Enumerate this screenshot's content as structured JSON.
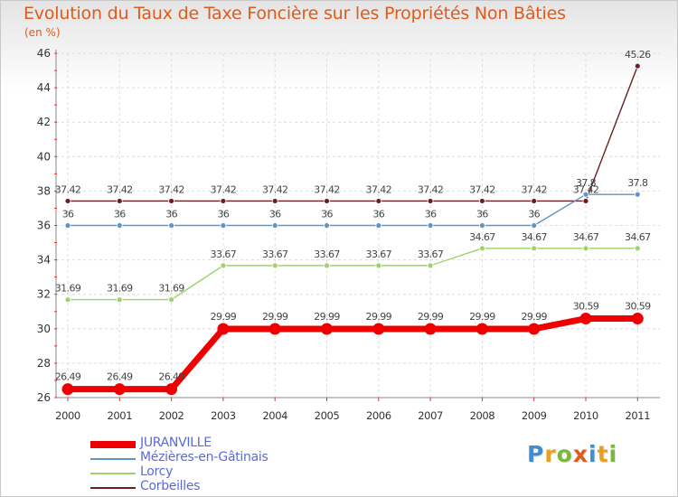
{
  "title": "Evolution du Taux de Taxe Foncière sur les Propriétés Non Bâties",
  "unit": "(en %)",
  "logo": {
    "text": "Proxiti",
    "colors": [
      "#3a8fd6",
      "#e8a020",
      "#7ab83a",
      "#e05a1a",
      "#3a8fd6",
      "#e8a020",
      "#7ab83a"
    ]
  },
  "chart_data": {
    "type": "line",
    "title": "Evolution du Taux de Taxe Foncière sur les Propriétés Non Bâties",
    "ylabel": "(en %)",
    "xlabel": "",
    "ylim": [
      26,
      46
    ],
    "yticks": [
      26,
      28,
      30,
      32,
      34,
      36,
      38,
      40,
      42,
      44,
      46
    ],
    "categories": [
      "2000",
      "2001",
      "2002",
      "2003",
      "2004",
      "2005",
      "2006",
      "2007",
      "2008",
      "2009",
      "2010",
      "2011"
    ],
    "grid": true,
    "legend_position": "bottom-left",
    "series": [
      {
        "name": "Corbeilles",
        "color": "#6b1f24",
        "values": [
          37.42,
          37.42,
          37.42,
          37.42,
          37.42,
          37.42,
          37.42,
          37.42,
          37.42,
          37.42,
          37.42,
          45.26
        ],
        "labels": [
          "37.42",
          "37.42",
          "37.42",
          "37.42",
          "37.42",
          "37.42",
          "37.42",
          "37.42",
          "37.42",
          "37.42",
          "37.42",
          "45.26"
        ]
      },
      {
        "name": "Mézières-en-Gâtinais",
        "color": "#5b97c8",
        "values": [
          36,
          36,
          36,
          36,
          36,
          36,
          36,
          36,
          36,
          36,
          37.8,
          37.8
        ],
        "labels": [
          "36",
          "36",
          "36",
          "36",
          "36",
          "36",
          "36",
          "36",
          "36",
          "36",
          "37.8",
          "37.8"
        ]
      },
      {
        "name": "Lorcy",
        "color": "#9dd36a",
        "values": [
          31.69,
          31.69,
          31.69,
          33.67,
          33.67,
          33.67,
          33.67,
          33.67,
          34.67,
          34.67,
          34.67,
          34.67
        ],
        "labels": [
          "31.69",
          "31.69",
          "31.69",
          "33.67",
          "33.67",
          "33.67",
          "33.67",
          "33.67",
          "34.67",
          "34.67",
          "34.67",
          "34.67"
        ]
      },
      {
        "name": "JURANVILLE",
        "color": "#ee0000",
        "values": [
          26.49,
          26.49,
          26.49,
          29.99,
          29.99,
          29.99,
          29.99,
          29.99,
          29.99,
          29.99,
          30.59,
          30.59
        ],
        "labels": [
          "26.49",
          "26.49",
          "26.49",
          "29.99",
          "29.99",
          "29.99",
          "29.99",
          "29.99",
          "29.99",
          "29.99",
          "30.59",
          "30.59"
        ]
      }
    ],
    "legend_order": [
      "JURANVILLE",
      "Mézières-en-Gâtinais",
      "Lorcy",
      "Corbeilles"
    ]
  }
}
